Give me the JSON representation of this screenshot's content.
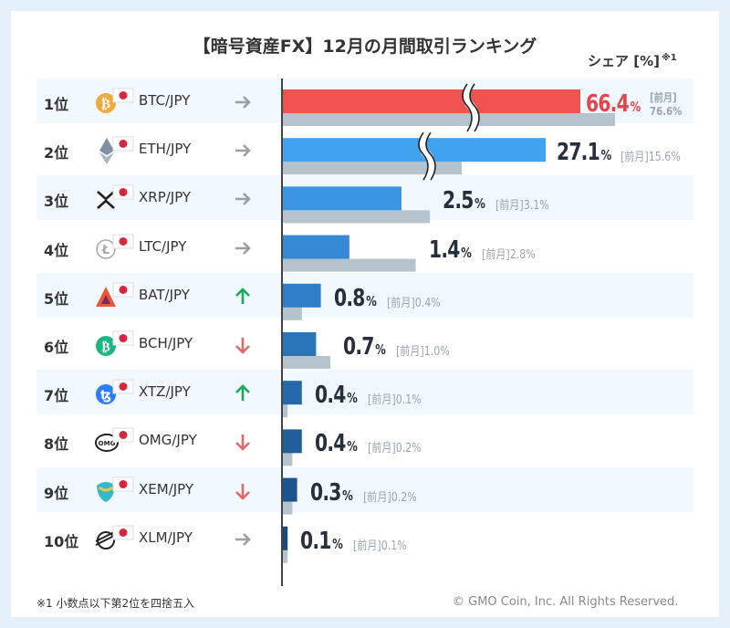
{
  "title": "【暗号資産FX】12月の月間取引ランキング",
  "share_label": "シェア [%]",
  "share_note_mark": "※1",
  "footnote": "※1  小数点以下第2位を四捨五入",
  "copyright": "© GMO Coin, Inc. All Rights Reserved.",
  "prev_prefix": "[前月]",
  "pct_unit": "%",
  "chart_data": {
    "type": "bar",
    "orientation": "horizontal",
    "axis_break": true,
    "series": [
      {
        "name": "",
        "values": [
          66.4,
          27.1,
          2.5,
          1.4,
          0.8,
          0.7,
          0.4,
          0.4,
          0.3,
          0.1
        ]
      },
      {
        "name": "前月",
        "values": [
          76.6,
          15.6,
          3.1,
          2.8,
          0.4,
          1.0,
          0.1,
          0.2,
          0.2,
          0.1
        ]
      }
    ],
    "rows": [
      {
        "rank": "1位",
        "pair": "BTC/JPY",
        "value": "66.4",
        "prev": "76.6%",
        "trend": "flat",
        "icon": "bitcoin-icon",
        "color": "#f0a93c",
        "bar_color": "#f0524f"
      },
      {
        "rank": "2位",
        "pair": "ETH/JPY",
        "value": "27.1",
        "prev": "15.6%",
        "trend": "flat",
        "icon": "ethereum-icon",
        "color": "#8a9bb0",
        "bar_color": "#3fa3f0"
      },
      {
        "rank": "3位",
        "pair": "XRP/JPY",
        "value": "2.5",
        "prev": "3.1%",
        "trend": "flat",
        "icon": "xrp-icon",
        "color": "#222222",
        "bar_color": "#3a96e2"
      },
      {
        "rank": "4位",
        "pair": "LTC/JPY",
        "value": "1.4",
        "prev": "2.8%",
        "trend": "flat",
        "icon": "litecoin-icon",
        "color": "#a5a5a5",
        "bar_color": "#3389d4"
      },
      {
        "rank": "5位",
        "pair": "BAT/JPY",
        "value": "0.8",
        "prev": "0.4%",
        "trend": "up",
        "icon": "bat-icon",
        "color": "#e8573c",
        "bar_color": "#2e7fc6"
      },
      {
        "rank": "6位",
        "pair": "BCH/JPY",
        "value": "0.7",
        "prev": "1.0%",
        "trend": "down",
        "icon": "bitcoin-cash-icon",
        "color": "#1db584",
        "bar_color": "#2a74b8"
      },
      {
        "rank": "7位",
        "pair": "XTZ/JPY",
        "value": "0.4",
        "prev": "0.1%",
        "trend": "up",
        "icon": "tezos-icon",
        "color": "#2c7df7",
        "bar_color": "#2669aa"
      },
      {
        "rank": "8位",
        "pair": "OMG/JPY",
        "value": "0.4",
        "prev": "0.2%",
        "trend": "down",
        "icon": "omg-icon",
        "color": "#222222",
        "bar_color": "#215e9c"
      },
      {
        "rank": "9位",
        "pair": "XEM/JPY",
        "value": "0.3",
        "prev": "0.2%",
        "trend": "down",
        "icon": "nem-icon",
        "color": "#35b8c8",
        "bar_color": "#1d548f"
      },
      {
        "rank": "10位",
        "pair": "XLM/JPY",
        "value": "0.1",
        "prev": "0.1%",
        "trend": "flat",
        "icon": "stellar-icon",
        "color": "#222222",
        "bar_color": "#194a82"
      }
    ],
    "colors": {
      "prev_bar": "#b4c3cc",
      "up": "#1aaa55",
      "down": "#e06a6a",
      "flat": "#9aa0a6"
    }
  }
}
